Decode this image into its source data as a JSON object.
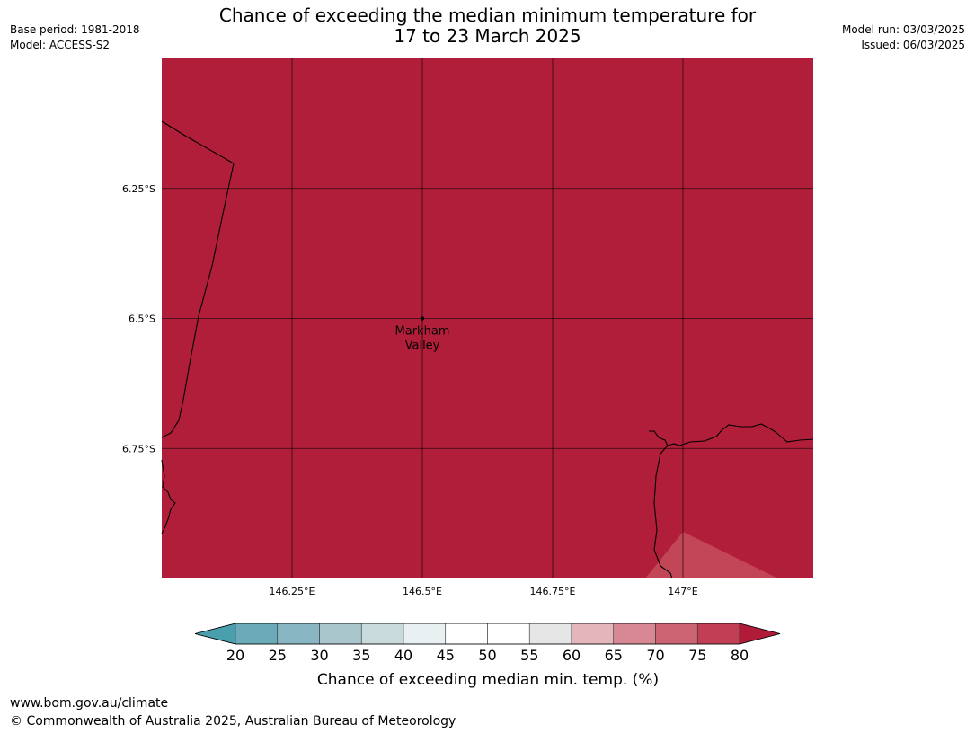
{
  "header": {
    "title_line1": "Chance of exceeding the median minimum temperature for",
    "title_line2": "17 to 23 March 2025",
    "base_period": "Base period: 1981-2018",
    "model": "Model: ACCESS-S2",
    "model_run": "Model run: 03/03/2025",
    "issued": "Issued: 06/03/2025"
  },
  "map": {
    "place": {
      "name_line1": "Markham",
      "name_line2": "Valley",
      "lon": 146.5,
      "lat": -6.5
    },
    "lon_range": [
      146.0,
      147.25
    ],
    "lat_range": [
      -6.0,
      -7.0
    ],
    "lat_ticks": [
      {
        "value": -6.25,
        "label": "6.25°S"
      },
      {
        "value": -6.5,
        "label": "6.5°S"
      },
      {
        "value": -6.75,
        "label": "6.75°S"
      }
    ],
    "lon_ticks": [
      {
        "value": 146.25,
        "label": "146.25°E"
      },
      {
        "value": 146.5,
        "label": "146.5°E"
      },
      {
        "value": 146.75,
        "label": "146.75°E"
      },
      {
        "value": 147.0,
        "label": "147°E"
      }
    ],
    "fill_color": "#b11e39",
    "patch_color": "#c24656"
  },
  "colorbar": {
    "label": "Chance of exceeding median min. temp. (%)",
    "ticks": [
      "20",
      "25",
      "30",
      "35",
      "40",
      "45",
      "50",
      "55",
      "60",
      "65",
      "70",
      "75",
      "80"
    ],
    "colors": [
      "#6aaab9",
      "#89b6c3",
      "#a8c6cc",
      "#c9dadd",
      "#e8f0f2",
      "#ffffff",
      "#ffffff",
      "#e6e6e6",
      "#e3b6bc",
      "#d88892",
      "#cc6373",
      "#c23e54"
    ],
    "low_extend_color": "#4a9fae",
    "high_extend_color": "#b01c38"
  },
  "footer": {
    "url": "www.bom.gov.au/climate",
    "copyright": "© Commonwealth of Australia 2025, Australian Bureau of Meteorology"
  }
}
